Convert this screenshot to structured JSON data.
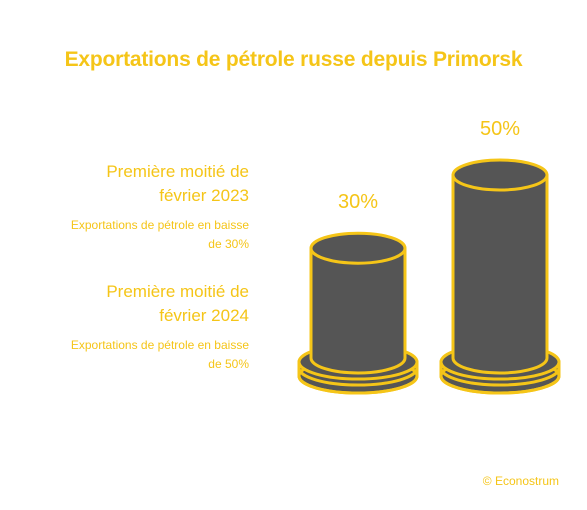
{
  "title": "Exportations de pétrole russe depuis Primorsk",
  "credit": "© Econostrum",
  "colors": {
    "accent": "#f5c518",
    "fill": "#555555"
  },
  "legend": [
    {
      "head_line1": "Première moitié de",
      "head_line2": "février 2023",
      "sub_line1": "Exportations de pétrole en baisse",
      "sub_line2": "de 30%"
    },
    {
      "head_line1": "Première moitié de",
      "head_line2": "février 2024",
      "sub_line1": "Exportations de pétrole en baisse",
      "sub_line2": "de 50%"
    }
  ],
  "chart_data": {
    "type": "bar",
    "title": "Exportations de pétrole russe depuis Primorsk",
    "categories": [
      "Première moitié de février 2023",
      "Première moitié de février 2024"
    ],
    "values": [
      30,
      50
    ],
    "unit": "%",
    "data_labels": [
      "30%",
      "50%"
    ],
    "ylim": [
      0,
      50
    ],
    "grid": false
  }
}
